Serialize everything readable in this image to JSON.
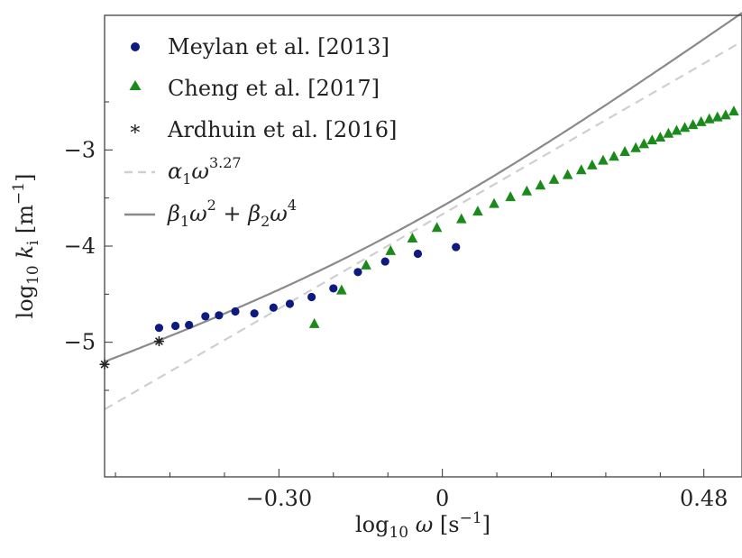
{
  "chart_data": {
    "type": "scatter",
    "xlabel": "log10 ω [s⁻¹]",
    "ylabel": "log10 ki [m⁻¹]",
    "xlim": [
      -0.62,
      0.55
    ],
    "ylim": [
      -6.4,
      -1.6
    ],
    "xticks": [
      -0.3,
      0,
      0.48
    ],
    "xtick_labels": [
      "−0.30",
      "0",
      "0.48"
    ],
    "yticks": [
      -3,
      -4,
      -5
    ],
    "ytick_labels": [
      "−3",
      "−4",
      "−5"
    ],
    "grid": false,
    "legend_position": "top-left",
    "series": [
      {
        "name": "Meylan et al. [2013]",
        "kind": "points",
        "marker": "circle",
        "color": "#0d1a80",
        "points": [
          [
            -0.52,
            -4.85
          ],
          [
            -0.49,
            -4.83
          ],
          [
            -0.465,
            -4.82
          ],
          [
            -0.435,
            -4.73
          ],
          [
            -0.41,
            -4.72
          ],
          [
            -0.38,
            -4.68
          ],
          [
            -0.345,
            -4.7
          ],
          [
            -0.31,
            -4.64
          ],
          [
            -0.28,
            -4.6
          ],
          [
            -0.24,
            -4.53
          ],
          [
            -0.2,
            -4.44
          ],
          [
            -0.155,
            -4.27
          ],
          [
            -0.105,
            -4.16
          ],
          [
            -0.045,
            -4.08
          ],
          [
            0.025,
            -4.01
          ]
        ]
      },
      {
        "name": "Cheng et al. [2017]",
        "kind": "points",
        "marker": "triangle",
        "color": "#1a8a1a",
        "points": [
          [
            -0.235,
            -4.81
          ],
          [
            -0.185,
            -4.46
          ],
          [
            -0.14,
            -4.2
          ],
          [
            -0.095,
            -4.05
          ],
          [
            -0.055,
            -3.92
          ],
          [
            -0.01,
            -3.81
          ],
          [
            0.035,
            -3.72
          ],
          [
            0.065,
            -3.64
          ],
          [
            0.095,
            -3.56
          ],
          [
            0.125,
            -3.49
          ],
          [
            0.155,
            -3.43
          ],
          [
            0.18,
            -3.37
          ],
          [
            0.205,
            -3.31
          ],
          [
            0.23,
            -3.26
          ],
          [
            0.255,
            -3.21
          ],
          [
            0.275,
            -3.16
          ],
          [
            0.295,
            -3.11
          ],
          [
            0.315,
            -3.07
          ],
          [
            0.335,
            -3.02
          ],
          [
            0.355,
            -2.98
          ],
          [
            0.37,
            -2.94
          ],
          [
            0.385,
            -2.9
          ],
          [
            0.4,
            -2.87
          ],
          [
            0.415,
            -2.83
          ],
          [
            0.43,
            -2.8
          ],
          [
            0.445,
            -2.77
          ],
          [
            0.46,
            -2.74
          ],
          [
            0.475,
            -2.71
          ],
          [
            0.49,
            -2.68
          ],
          [
            0.505,
            -2.66
          ],
          [
            0.52,
            -2.64
          ],
          [
            0.535,
            -2.6
          ]
        ]
      },
      {
        "name": "Ardhuin et al. [2016]",
        "kind": "points",
        "marker": "asterisk",
        "color": "#222222",
        "points": [
          [
            -0.62,
            -5.23
          ],
          [
            -0.52,
            -4.99
          ]
        ]
      },
      {
        "name": "α1ω^3.27",
        "kind": "line",
        "style": "dashed",
        "color": "#cfcfcf",
        "slope": 3.27,
        "intercept": -3.67
      },
      {
        "name": "β1ω^2 + β2ω^4",
        "kind": "line",
        "style": "solid",
        "color": "#8a8a8a",
        "beta1": 0.0001,
        "beta2": 0.00016
      }
    ]
  }
}
